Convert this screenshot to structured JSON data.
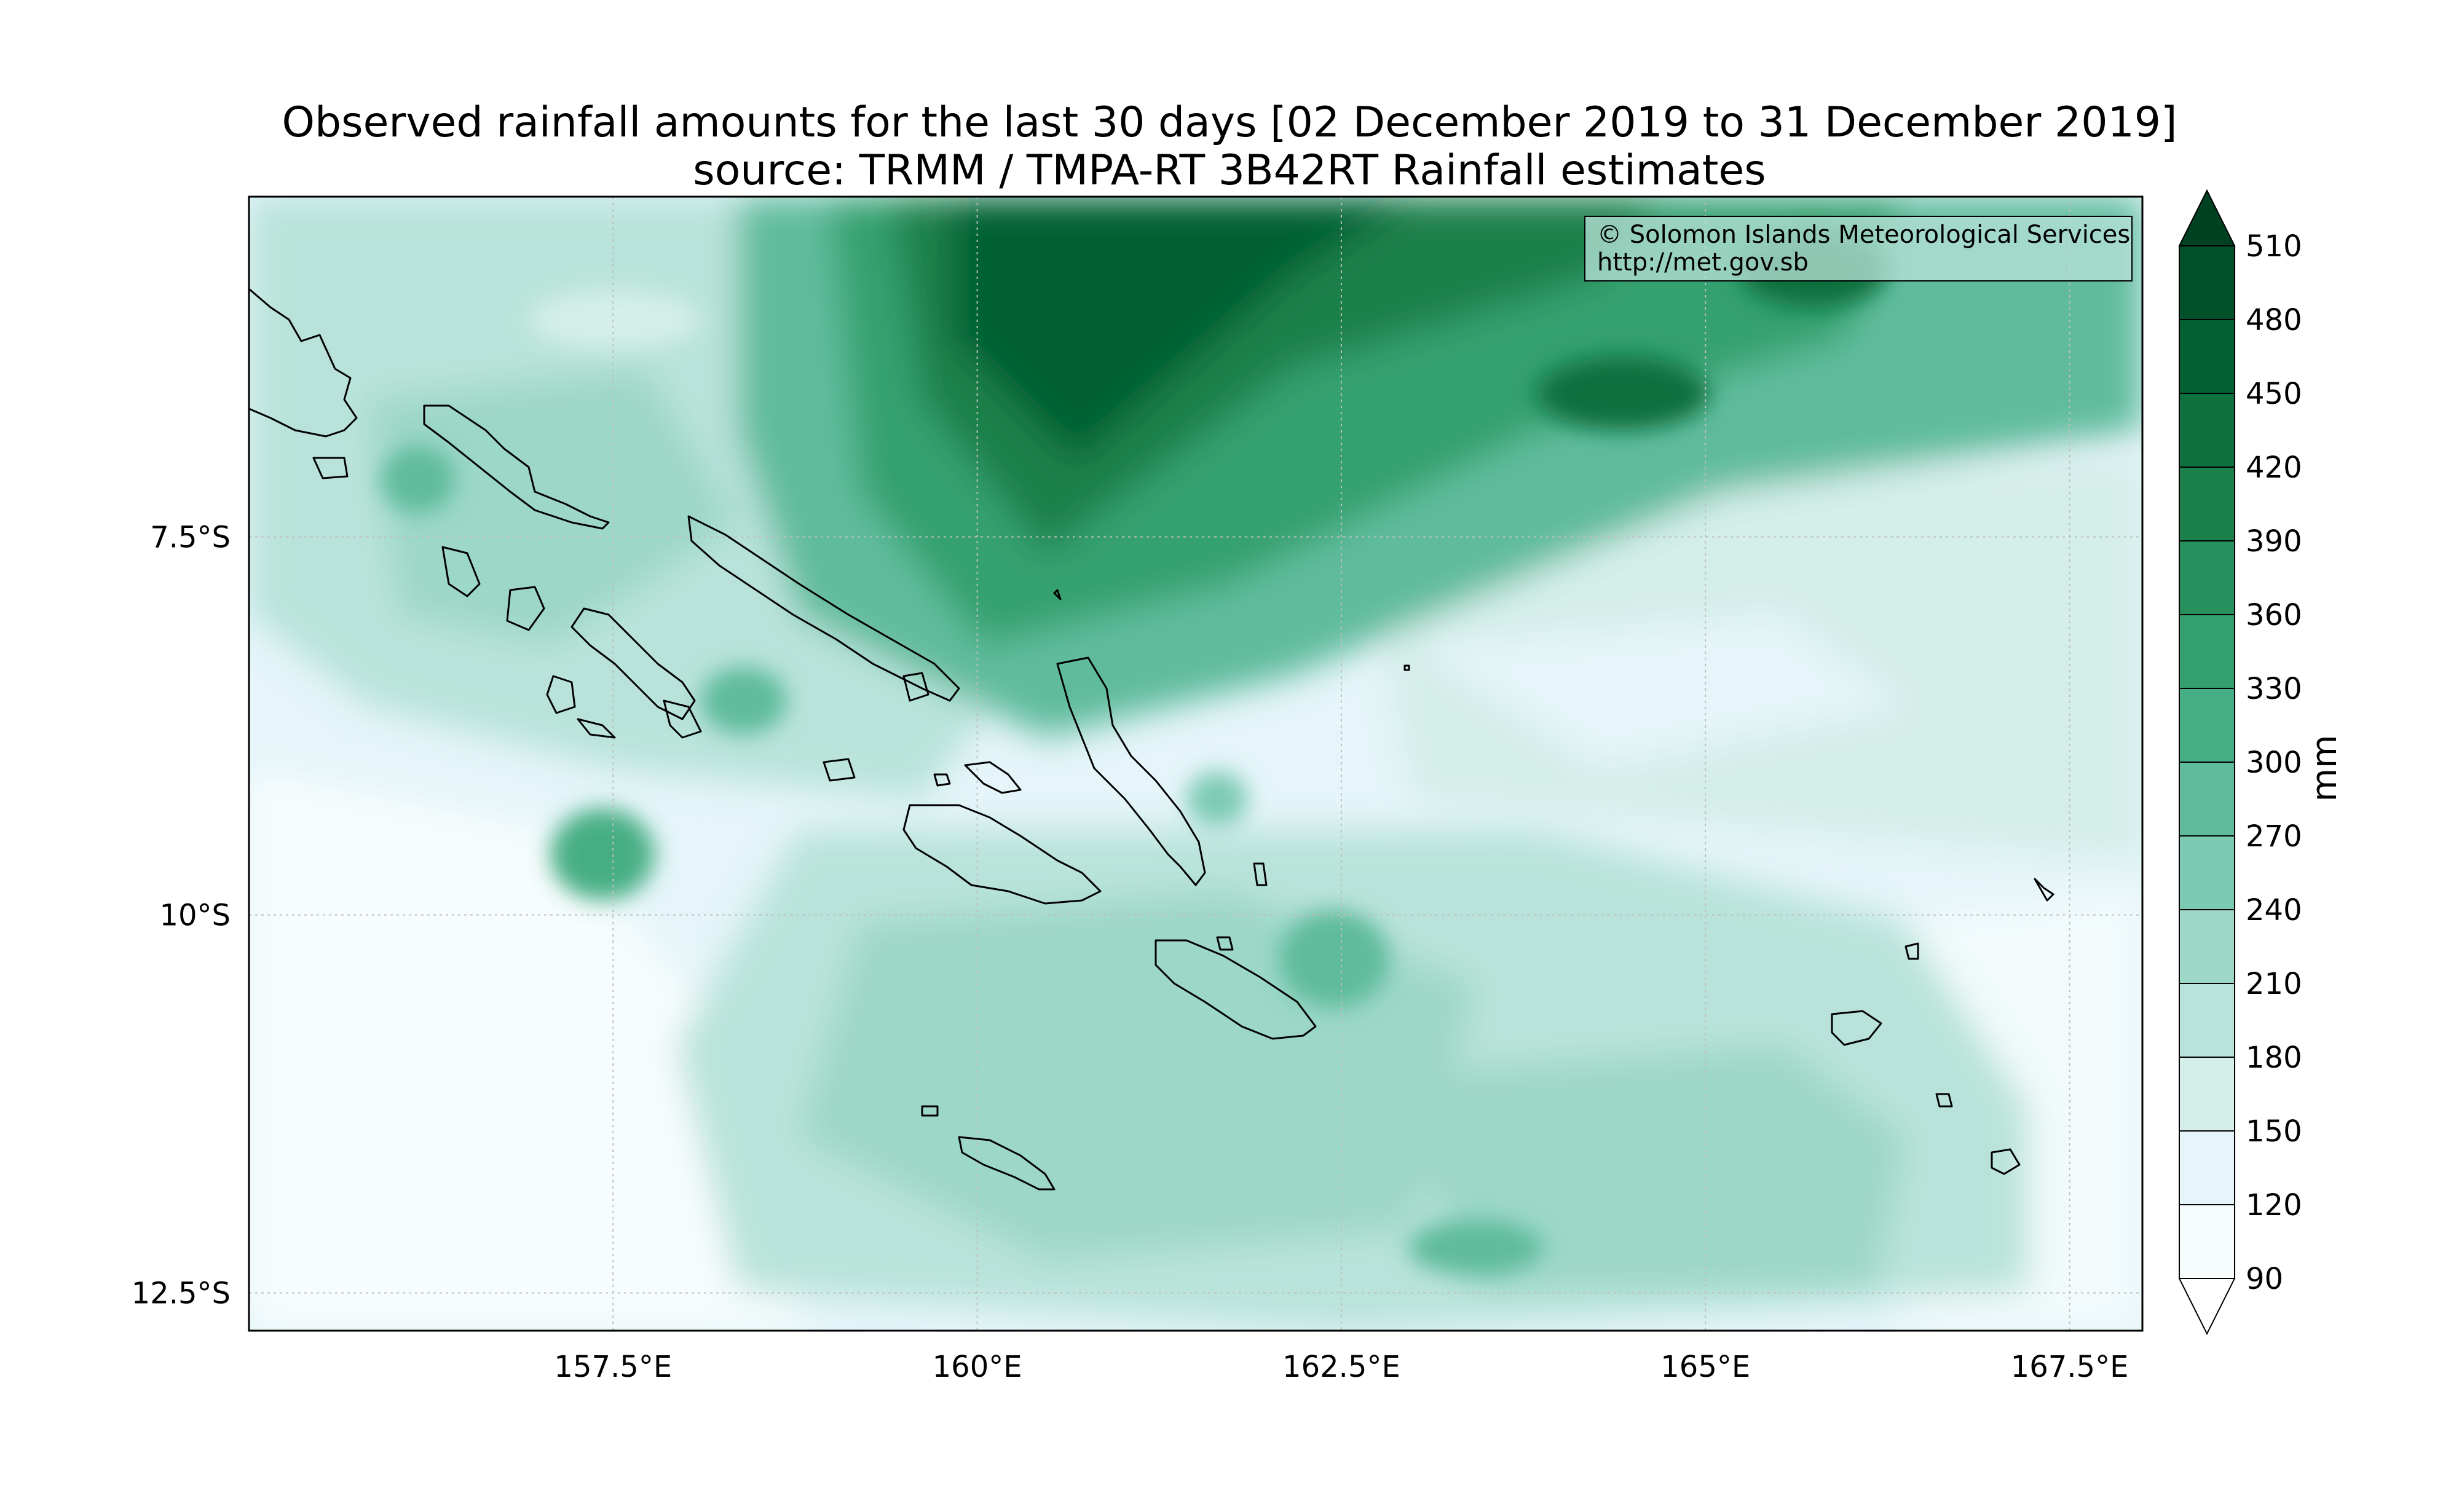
{
  "title": {
    "line1": "Observed rainfall amounts for the last 30 days [02 December 2019 to 31 December 2019]",
    "line2": "source: TRMM / TMPA-RT 3B42RT Rainfall estimates"
  },
  "credit": {
    "line1": "© Solomon Islands Meteorological Services",
    "line2": "http://met.gov.sb"
  },
  "map": {
    "lon_range": [
      155.0,
      168.0
    ],
    "lat_range": [
      -12.75,
      -5.25
    ],
    "lon_ticks": [
      {
        "value": 157.5,
        "label": "157.5°E"
      },
      {
        "value": 160.0,
        "label": "160°E"
      },
      {
        "value": 162.5,
        "label": "162.5°E"
      },
      {
        "value": 165.0,
        "label": "165°E"
      },
      {
        "value": 167.5,
        "label": "167.5°E"
      }
    ],
    "lat_ticks": [
      {
        "value": -7.5,
        "label": "7.5°S"
      },
      {
        "value": -10.0,
        "label": "10°S"
      },
      {
        "value": -12.5,
        "label": "12.5°S"
      }
    ],
    "gridlines": true
  },
  "colorbar": {
    "unit_label": "mm",
    "levels": [
      90,
      120,
      150,
      180,
      210,
      240,
      270,
      300,
      330,
      360,
      390,
      420,
      450,
      480,
      510
    ],
    "colors": [
      "#f7fcfd",
      "#e5f5f9",
      "#d4eee9",
      "#b9e3da",
      "#9cd7c7",
      "#7dcab4",
      "#5fbb9c",
      "#46ae84",
      "#35a06f",
      "#27905c",
      "#1b804a",
      "#0e703c",
      "#036030",
      "#00502a"
    ],
    "extend_min_color": "#ffffff",
    "extend_max_color": "#004121"
  },
  "colors": {
    "coastline": "#000000",
    "grid": "#bfbfbf"
  }
}
